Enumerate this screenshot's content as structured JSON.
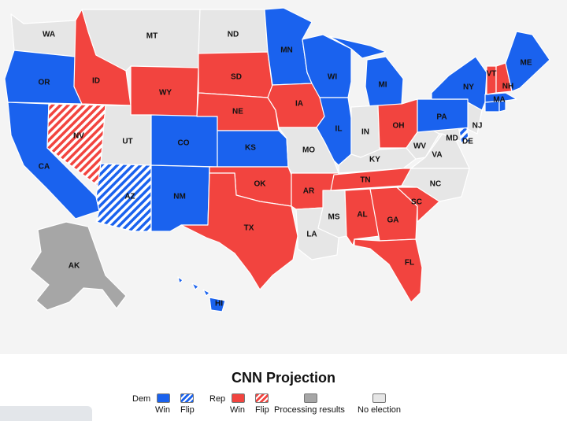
{
  "colors": {
    "dem_win": "#1a62ee",
    "rep_win": "#f2443f",
    "processing": "#a6a6a6",
    "no_election": "#e6e6e6",
    "map_background": "#f4f4f4"
  },
  "states": [
    {
      "code": "WA",
      "status": "no_election"
    },
    {
      "code": "OR",
      "status": "dem_win"
    },
    {
      "code": "CA",
      "status": "dem_win"
    },
    {
      "code": "ID",
      "status": "rep_win"
    },
    {
      "code": "NV",
      "status": "rep_flip"
    },
    {
      "code": "MT",
      "status": "no_election"
    },
    {
      "code": "WY",
      "status": "rep_win"
    },
    {
      "code": "UT",
      "status": "no_election"
    },
    {
      "code": "AZ",
      "status": "dem_flip"
    },
    {
      "code": "CO",
      "status": "dem_win"
    },
    {
      "code": "NM",
      "status": "dem_win"
    },
    {
      "code": "ND",
      "status": "no_election"
    },
    {
      "code": "SD",
      "status": "rep_win"
    },
    {
      "code": "NE",
      "status": "rep_win"
    },
    {
      "code": "KS",
      "status": "dem_win"
    },
    {
      "code": "OK",
      "status": "rep_win"
    },
    {
      "code": "TX",
      "status": "rep_win"
    },
    {
      "code": "MN",
      "status": "dem_win"
    },
    {
      "code": "IA",
      "status": "rep_win"
    },
    {
      "code": "MO",
      "status": "no_election"
    },
    {
      "code": "AR",
      "status": "rep_win"
    },
    {
      "code": "LA",
      "status": "no_election"
    },
    {
      "code": "WI",
      "status": "dem_win"
    },
    {
      "code": "IL",
      "status": "dem_win"
    },
    {
      "code": "MI",
      "status": "dem_win"
    },
    {
      "code": "IN",
      "status": "no_election"
    },
    {
      "code": "OH",
      "status": "rep_win"
    },
    {
      "code": "KY",
      "status": "no_election"
    },
    {
      "code": "TN",
      "status": "rep_win"
    },
    {
      "code": "MS",
      "status": "no_election"
    },
    {
      "code": "AL",
      "status": "rep_win"
    },
    {
      "code": "GA",
      "status": "rep_win"
    },
    {
      "code": "FL",
      "status": "rep_win"
    },
    {
      "code": "SC",
      "status": "rep_win"
    },
    {
      "code": "NC",
      "status": "no_election"
    },
    {
      "code": "VA",
      "status": "no_election"
    },
    {
      "code": "WV",
      "status": "no_election"
    },
    {
      "code": "MD",
      "status": "no_election"
    },
    {
      "code": "DE",
      "status": "dem_flip"
    },
    {
      "code": "PA",
      "status": "dem_win"
    },
    {
      "code": "NJ",
      "status": "no_election"
    },
    {
      "code": "NY",
      "status": "dem_win"
    },
    {
      "code": "CT",
      "status": "dem_win"
    },
    {
      "code": "RI",
      "status": "dem_win"
    },
    {
      "code": "MA",
      "status": "dem_win"
    },
    {
      "code": "VT",
      "status": "rep_win"
    },
    {
      "code": "NH",
      "status": "rep_win"
    },
    {
      "code": "ME",
      "status": "dem_win"
    },
    {
      "code": "AK",
      "status": "processing"
    },
    {
      "code": "HI",
      "status": "dem_win"
    }
  ],
  "legend": {
    "title": "CNN Projection",
    "dem_label": "Dem",
    "rep_label": "Rep",
    "win_label": "Win",
    "flip_label": "Flip",
    "processing_label": "Processing results",
    "no_election_label": "No election"
  }
}
